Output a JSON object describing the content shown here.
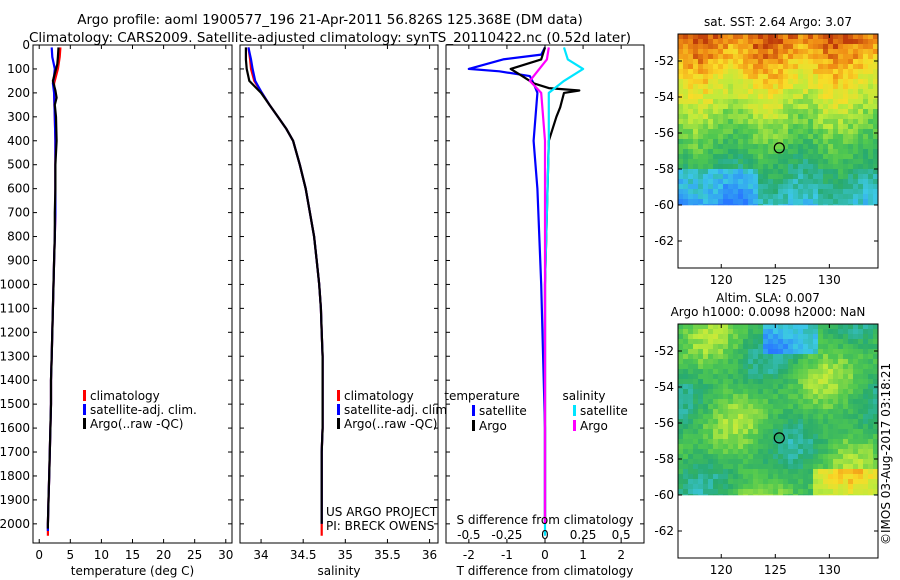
{
  "header": {
    "title": "Argo profile: aoml 1900577_196 21-Apr-2011 56.826S 125.368E (DM data)",
    "subtitle": "Climatology: CARS2009. Satellite-adjusted climatology: synTS_20110422.nc (0.52d later)"
  },
  "colors": {
    "climatology": "#ff0000",
    "satellite": "#0000ff",
    "argo": "#000000",
    "sal_satellite": "#00e5ff",
    "sal_argo": "#ff00ff"
  },
  "chart_data": [
    {
      "type": "line",
      "panel": "temperature",
      "xlabel": "temperature (deg C)",
      "ylabel": "",
      "xlim": [
        -1,
        31
      ],
      "ylim": [
        2080,
        0
      ],
      "xticks": [
        0,
        5,
        10,
        15,
        20,
        25,
        30
      ],
      "yticks": [
        0,
        100,
        200,
        300,
        400,
        500,
        600,
        700,
        800,
        900,
        1000,
        1100,
        1200,
        1300,
        1400,
        1500,
        1600,
        1700,
        1800,
        1900,
        2000
      ],
      "legend": [
        "climatology",
        "satellite-adj. clim.",
        "Argo(..raw -QC)"
      ],
      "series": [
        {
          "name": "climatology",
          "key": "climatology",
          "points": [
            [
              3.4,
              10
            ],
            [
              3.3,
              50
            ],
            [
              3.0,
              100
            ],
            [
              2.7,
              130
            ],
            [
              2.4,
              160
            ],
            [
              2.4,
              200
            ],
            [
              2.5,
              300
            ],
            [
              2.6,
              400
            ],
            [
              2.6,
              500
            ],
            [
              2.6,
              600
            ],
            [
              2.6,
              700
            ],
            [
              2.5,
              800
            ],
            [
              2.4,
              900
            ],
            [
              2.3,
              1000
            ],
            [
              2.2,
              1100
            ],
            [
              2.1,
              1200
            ],
            [
              2.0,
              1300
            ],
            [
              1.9,
              1400
            ],
            [
              1.9,
              1500
            ],
            [
              1.8,
              1600
            ],
            [
              1.7,
              1700
            ],
            [
              1.6,
              1800
            ],
            [
              1.5,
              1900
            ],
            [
              1.4,
              2000
            ],
            [
              1.4,
              2050
            ]
          ]
        },
        {
          "name": "satellite-adj. clim.",
          "key": "satellite",
          "points": [
            [
              2.0,
              10
            ],
            [
              2.1,
              50
            ],
            [
              2.5,
              100
            ],
            [
              2.4,
              130
            ],
            [
              2.2,
              160
            ],
            [
              2.4,
              200
            ],
            [
              2.5,
              300
            ],
            [
              2.6,
              400
            ],
            [
              2.6,
              500
            ],
            [
              2.6,
              600
            ],
            [
              2.6,
              700
            ],
            [
              2.5,
              800
            ],
            [
              2.4,
              900
            ],
            [
              2.3,
              1000
            ],
            [
              2.2,
              1100
            ],
            [
              2.1,
              1200
            ],
            [
              2.0,
              1300
            ],
            [
              1.9,
              1400
            ],
            [
              1.9,
              1500
            ],
            [
              1.8,
              1600
            ],
            [
              1.7,
              1700
            ],
            [
              1.6,
              1800
            ],
            [
              1.5,
              1900
            ],
            [
              1.4,
              2000
            ],
            [
              1.4,
              2030
            ]
          ]
        },
        {
          "name": "Argo(..raw -QC)",
          "key": "argo",
          "points": [
            [
              3.1,
              10
            ],
            [
              3.0,
              50
            ],
            [
              2.9,
              80
            ],
            [
              2.6,
              110
            ],
            [
              2.2,
              150
            ],
            [
              2.6,
              190
            ],
            [
              2.8,
              220
            ],
            [
              2.5,
              250
            ],
            [
              2.7,
              300
            ],
            [
              2.8,
              400
            ],
            [
              2.6,
              500
            ],
            [
              2.6,
              600
            ],
            [
              2.5,
              700
            ],
            [
              2.5,
              800
            ],
            [
              2.4,
              900
            ],
            [
              2.3,
              1000
            ],
            [
              2.2,
              1100
            ],
            [
              2.1,
              1200
            ],
            [
              2.0,
              1300
            ],
            [
              1.9,
              1400
            ],
            [
              1.9,
              1500
            ],
            [
              1.8,
              1600
            ],
            [
              1.7,
              1700
            ],
            [
              1.6,
              1800
            ],
            [
              1.5,
              1900
            ],
            [
              1.4,
              2000
            ],
            [
              1.4,
              2020
            ]
          ]
        }
      ]
    },
    {
      "type": "line",
      "panel": "salinity",
      "xlabel": "salinity",
      "ylabel": "",
      "xlim": [
        33.75,
        36.1
      ],
      "ylim": [
        2080,
        0
      ],
      "xticks": [
        34,
        34.5,
        35,
        35.5,
        36
      ],
      "legend": [
        "climatology",
        "satellite-adj. clim.",
        "Argo(..raw -QC)"
      ],
      "annotation": [
        "US ARGO PROJECT",
        "PI: BRECK OWENS"
      ],
      "series": [
        {
          "name": "climatology",
          "key": "climatology",
          "points": [
            [
              33.85,
              10
            ],
            [
              33.87,
              60
            ],
            [
              33.88,
              100
            ],
            [
              33.92,
              150
            ],
            [
              34.01,
              200
            ],
            [
              34.1,
              250
            ],
            [
              34.2,
              300
            ],
            [
              34.3,
              350
            ],
            [
              34.38,
              400
            ],
            [
              34.46,
              500
            ],
            [
              34.53,
              600
            ],
            [
              34.58,
              700
            ],
            [
              34.63,
              800
            ],
            [
              34.66,
              900
            ],
            [
              34.69,
              1000
            ],
            [
              34.71,
              1100
            ],
            [
              34.72,
              1200
            ],
            [
              34.73,
              1300
            ],
            [
              34.73,
              1400
            ],
            [
              34.73,
              1500
            ],
            [
              34.73,
              1600
            ],
            [
              34.72,
              1700
            ],
            [
              34.72,
              1800
            ],
            [
              34.72,
              1900
            ],
            [
              34.72,
              2000
            ],
            [
              34.72,
              2050
            ]
          ]
        },
        {
          "name": "satellite-adj. clim.",
          "key": "satellite",
          "points": [
            [
              33.85,
              10
            ],
            [
              33.88,
              60
            ],
            [
              33.9,
              100
            ],
            [
              33.93,
              150
            ],
            [
              34.01,
              200
            ],
            [
              34.1,
              250
            ],
            [
              34.2,
              300
            ],
            [
              34.3,
              350
            ],
            [
              34.38,
              400
            ],
            [
              34.46,
              500
            ],
            [
              34.53,
              600
            ],
            [
              34.58,
              700
            ],
            [
              34.63,
              800
            ],
            [
              34.66,
              900
            ],
            [
              34.69,
              1000
            ],
            [
              34.71,
              1100
            ],
            [
              34.72,
              1200
            ],
            [
              34.73,
              1300
            ],
            [
              34.73,
              1400
            ],
            [
              34.73,
              1500
            ],
            [
              34.73,
              1600
            ],
            [
              34.72,
              1700
            ],
            [
              34.72,
              1800
            ],
            [
              34.72,
              1900
            ],
            [
              34.72,
              2000
            ]
          ]
        },
        {
          "name": "Argo(..raw -QC)",
          "key": "argo",
          "points": [
            [
              33.82,
              10
            ],
            [
              33.82,
              60
            ],
            [
              33.83,
              100
            ],
            [
              33.86,
              150
            ],
            [
              34.0,
              200
            ],
            [
              34.1,
              250
            ],
            [
              34.2,
              300
            ],
            [
              34.3,
              350
            ],
            [
              34.38,
              400
            ],
            [
              34.46,
              500
            ],
            [
              34.53,
              600
            ],
            [
              34.58,
              700
            ],
            [
              34.63,
              800
            ],
            [
              34.66,
              900
            ],
            [
              34.69,
              1000
            ],
            [
              34.71,
              1100
            ],
            [
              34.72,
              1200
            ],
            [
              34.73,
              1300
            ],
            [
              34.73,
              1400
            ],
            [
              34.73,
              1500
            ],
            [
              34.73,
              1600
            ],
            [
              34.72,
              1700
            ],
            [
              34.72,
              1800
            ],
            [
              34.72,
              1900
            ],
            [
              34.72,
              2000
            ]
          ]
        }
      ]
    },
    {
      "type": "line",
      "panel": "difference",
      "xlabel": "T difference from climatology",
      "xlabel_top": "S difference from climatology",
      "xlim": [
        -2.6,
        2.6
      ],
      "ylim": [
        2080,
        0
      ],
      "xticks": [
        -2,
        -1,
        0,
        1,
        2
      ],
      "xticks_top": [
        "-0.5",
        "-0.25",
        "0",
        "0.25",
        "0.5"
      ],
      "legend_headers": [
        "temperature",
        "salinity"
      ],
      "legend": [
        "satellite",
        "Argo",
        "satellite",
        "Argo"
      ],
      "series": [
        {
          "name": "satellite",
          "key": "satellite",
          "points": [
            [
              0,
              10
            ],
            [
              -0.1,
              40
            ],
            [
              -1.1,
              60
            ],
            [
              -2.0,
              100
            ],
            [
              -1.2,
              110
            ],
            [
              -0.4,
              130
            ],
            [
              -0.3,
              160
            ],
            [
              -0.2,
              200
            ],
            [
              -0.3,
              400
            ],
            [
              -0.2,
              600
            ],
            [
              -0.15,
              800
            ],
            [
              -0.1,
              1000
            ],
            [
              -0.05,
              1300
            ],
            [
              0,
              1600
            ],
            [
              0,
              2000
            ]
          ]
        },
        {
          "name": "Argo",
          "key": "argo",
          "points": [
            [
              0,
              10
            ],
            [
              -0.1,
              60
            ],
            [
              -0.9,
              100
            ],
            [
              -0.6,
              130
            ],
            [
              -0.3,
              160
            ],
            [
              0.1,
              180
            ],
            [
              0.9,
              190
            ],
            [
              0.5,
              200
            ],
            [
              0.4,
              260
            ],
            [
              0.3,
              300
            ],
            [
              0.1,
              400
            ],
            [
              0.05,
              700
            ],
            [
              0,
              1000
            ],
            [
              0,
              1500
            ],
            [
              0,
              2000
            ]
          ]
        },
        {
          "name": "satellite",
          "key": "sal_satellite",
          "points": [
            [
              0.5,
              10
            ],
            [
              0.6,
              60
            ],
            [
              1.0,
              100
            ],
            [
              0.5,
              150
            ],
            [
              0.1,
              200
            ],
            [
              0.1,
              400
            ],
            [
              0.05,
              700
            ],
            [
              0,
              1000
            ],
            [
              0,
              1500
            ],
            [
              0,
              2050
            ]
          ]
        },
        {
          "name": "Argo",
          "key": "sal_argo",
          "points": [
            [
              0.1,
              10
            ],
            [
              0.05,
              60
            ],
            [
              -0.4,
              150
            ],
            [
              -0.1,
              200
            ],
            [
              0,
              400
            ],
            [
              0,
              700
            ],
            [
              0,
              1000
            ],
            [
              0,
              1500
            ],
            [
              0,
              2000
            ]
          ]
        }
      ]
    }
  ],
  "maps": {
    "sst": {
      "title": "sat. SST: 2.64  Argo: 3.07",
      "xticks": [
        "120",
        "125",
        "130"
      ],
      "yticks": [
        "-52",
        "-54",
        "-56",
        "-58",
        "-60",
        "-62"
      ],
      "lon_range": [
        116,
        134.5
      ],
      "lat_range": [
        -63.5,
        -50.5
      ],
      "data_lat_min": -60,
      "marker": [
        125.368,
        -56.826
      ]
    },
    "sla": {
      "title_line1": "Altim. SLA: 0.007",
      "title_line2": "Argo h1000: 0.0098 h2000: NaN",
      "xticks": [
        "120",
        "125",
        "130"
      ],
      "yticks": [
        "-52",
        "-54",
        "-56",
        "-58",
        "-60",
        "-62"
      ],
      "lon_range": [
        116,
        134.5
      ],
      "lat_range": [
        -63.5,
        -50.5
      ],
      "data_lat_min": -60,
      "marker": [
        125.368,
        -56.826
      ]
    }
  },
  "footer": {
    "credit": "©IMOS 03-Aug-2017 03:18:21"
  }
}
